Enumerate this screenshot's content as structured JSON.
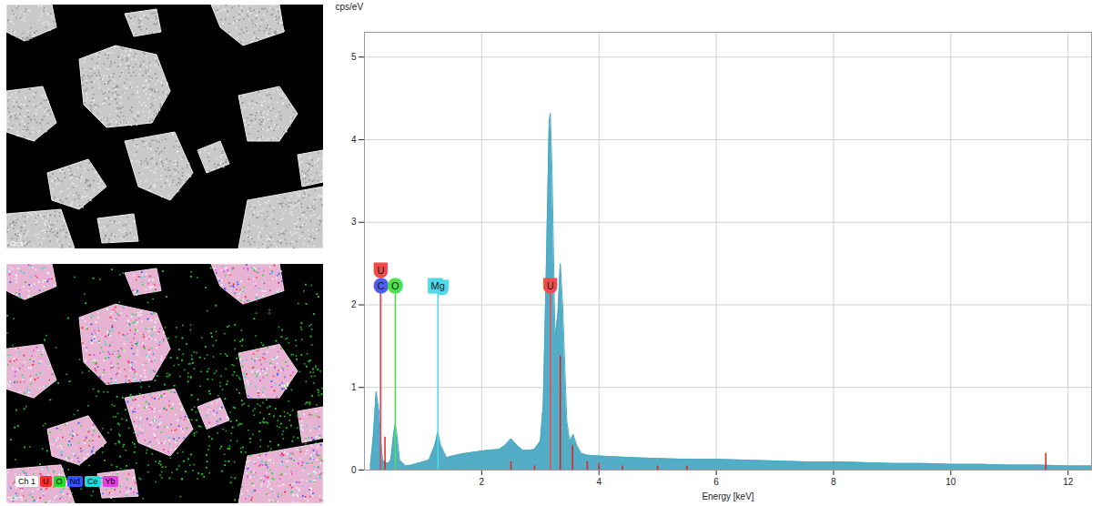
{
  "chart_data": {
    "type": "area",
    "x_label": "Energy [keV]",
    "y_label": "cps/eV",
    "color": "#4aa9c4",
    "xlim": [
      0,
      12.4
    ],
    "xticks": [
      2,
      4,
      6,
      8,
      10,
      12
    ],
    "ylim": [
      0,
      5.3
    ],
    "yticks": [
      0,
      1,
      2,
      3,
      4,
      5
    ],
    "grid": true,
    "x": [
      0.1,
      0.15,
      0.2,
      0.25,
      0.28,
      0.31,
      0.35,
      0.4,
      0.45,
      0.5,
      0.525,
      0.55,
      0.6,
      0.7,
      0.8,
      0.9,
      1.0,
      1.1,
      1.2,
      1.25,
      1.3,
      1.4,
      1.5,
      1.7,
      1.9,
      2.1,
      2.3,
      2.4,
      2.5,
      2.6,
      2.7,
      2.8,
      2.9,
      3.0,
      3.05,
      3.1,
      3.15,
      3.17,
      3.2,
      3.25,
      3.3,
      3.34,
      3.38,
      3.45,
      3.5,
      3.56,
      3.62,
      3.7,
      3.8,
      4.0,
      4.3,
      4.6,
      5.0,
      5.5,
      6.0,
      6.5,
      7.0,
      7.5,
      8.0,
      8.5,
      9.0,
      9.5,
      10.0,
      10.5,
      11.0,
      11.5,
      12.0,
      12.4
    ],
    "values": [
      0.05,
      0.4,
      0.95,
      0.7,
      0.35,
      0.12,
      0.1,
      0.08,
      0.12,
      0.45,
      0.55,
      0.45,
      0.12,
      0.05,
      0.06,
      0.08,
      0.1,
      0.12,
      0.3,
      0.46,
      0.3,
      0.15,
      0.17,
      0.2,
      0.22,
      0.24,
      0.25,
      0.3,
      0.38,
      0.3,
      0.24,
      0.24,
      0.25,
      0.35,
      0.8,
      2.4,
      4.2,
      4.32,
      3.6,
      1.6,
      1.9,
      2.5,
      2.0,
      0.6,
      0.35,
      0.43,
      0.3,
      0.2,
      0.18,
      0.17,
      0.16,
      0.15,
      0.14,
      0.13,
      0.13,
      0.12,
      0.11,
      0.1,
      0.1,
      0.09,
      0.08,
      0.08,
      0.07,
      0.07,
      0.06,
      0.06,
      0.05,
      0.05
    ],
    "line_markers": {
      "name": "U",
      "color": "#e2231a",
      "x": [
        0.35,
        2.5,
        2.9,
        3.34,
        3.55,
        3.8,
        4.0,
        4.4,
        5.0,
        5.5,
        11.62
      ],
      "values": [
        0.4,
        0.1,
        0.05,
        1.38,
        0.3,
        0.1,
        0.08,
        0.05,
        0.05,
        0.05,
        0.2
      ]
    },
    "element_labels": [
      {
        "text": "C",
        "energy": 0.277,
        "color": "#4a5ef0"
      },
      {
        "text": "U",
        "energy": 0.277,
        "color": "#f04a4a"
      },
      {
        "text": "O",
        "energy": 0.525,
        "color": "#4ce04c"
      },
      {
        "text": "Mg",
        "energy": 1.253,
        "color": "#4fd8e8"
      },
      {
        "text": "U",
        "energy": 3.171,
        "color": "#f04a4a"
      }
    ]
  },
  "panels": [
    {
      "label": "Ch 1"
    },
    {
      "label": "Ch 1",
      "legend_title": "Ch 1",
      "legend": [
        {
          "name": "U",
          "color": "#ff2a2a"
        },
        {
          "name": "O",
          "color": "#22dd22"
        },
        {
          "name": "Nd",
          "color": "#3355ff"
        },
        {
          "name": "Ce",
          "color": "#22dddd"
        },
        {
          "name": "Yb",
          "color": "#e040e0"
        }
      ]
    }
  ]
}
